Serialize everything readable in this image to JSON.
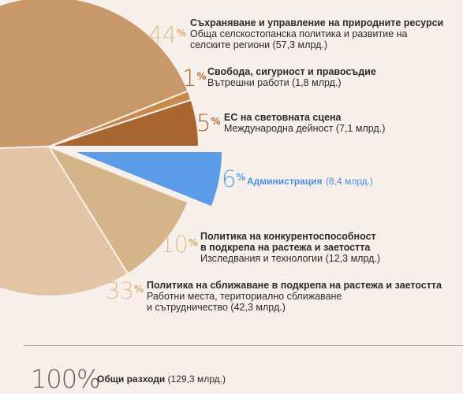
{
  "chart_data": {
    "type": "pie",
    "slices": [
      {
        "key": "natural",
        "percent": 44,
        "value": 57.3,
        "color": "#c89868"
      },
      {
        "key": "freedom",
        "percent": 1,
        "value": 1.8,
        "color": "#c8894a"
      },
      {
        "key": "global",
        "percent": 5,
        "value": 7.1,
        "color": "#aa6630"
      },
      {
        "key": "admin",
        "percent": 6,
        "value": 8.4,
        "color": "#5a9ce8"
      },
      {
        "key": "competitiveness",
        "percent": 10,
        "value": 12.3,
        "color": "#d6b48a"
      },
      {
        "key": "cohesion",
        "percent": 33,
        "value": 42.3,
        "color": "#e3c5a6"
      }
    ]
  },
  "labels": {
    "natural": {
      "pct": "44",
      "sign": "%",
      "title": "Съхраняване и управление на природните ресурси",
      "line1": "Обща селскостопанска политика и развитие на",
      "line2": "селските региони (57,3 млрд.)"
    },
    "freedom": {
      "pct": "1",
      "sign": "%",
      "title": "Свобода, сигурност и правосъдие",
      "line1": "Вътрешни работи (1,8 млрд.)"
    },
    "global": {
      "pct": "5",
      "sign": "%",
      "title": "ЕС на световната сцена",
      "line1": "Международна дейност (7,1 млрд.)"
    },
    "admin": {
      "pct": "6",
      "sign": "%",
      "title": "Администрация",
      "line1": "(8,4 млрд.)"
    },
    "competitiveness": {
      "pct": "10",
      "sign": "%",
      "title1": "Политика на конкурентоспособност",
      "title2": "в подкрепа на растежа и заетостта",
      "line1": "Изследвания и технологии (12,3 млрд.)"
    },
    "cohesion": {
      "pct": "33",
      "sign": "%",
      "title": "Политика на сближаване в подкрепа на растежа и заетостта",
      "line1": "Работни места, териториално сближаване",
      "line2": "и  сътрудничество (42,3 млрд.)"
    }
  },
  "total": {
    "pct": "100%",
    "title": "Общи разходи",
    "value": "(129,3 млрд.)"
  }
}
